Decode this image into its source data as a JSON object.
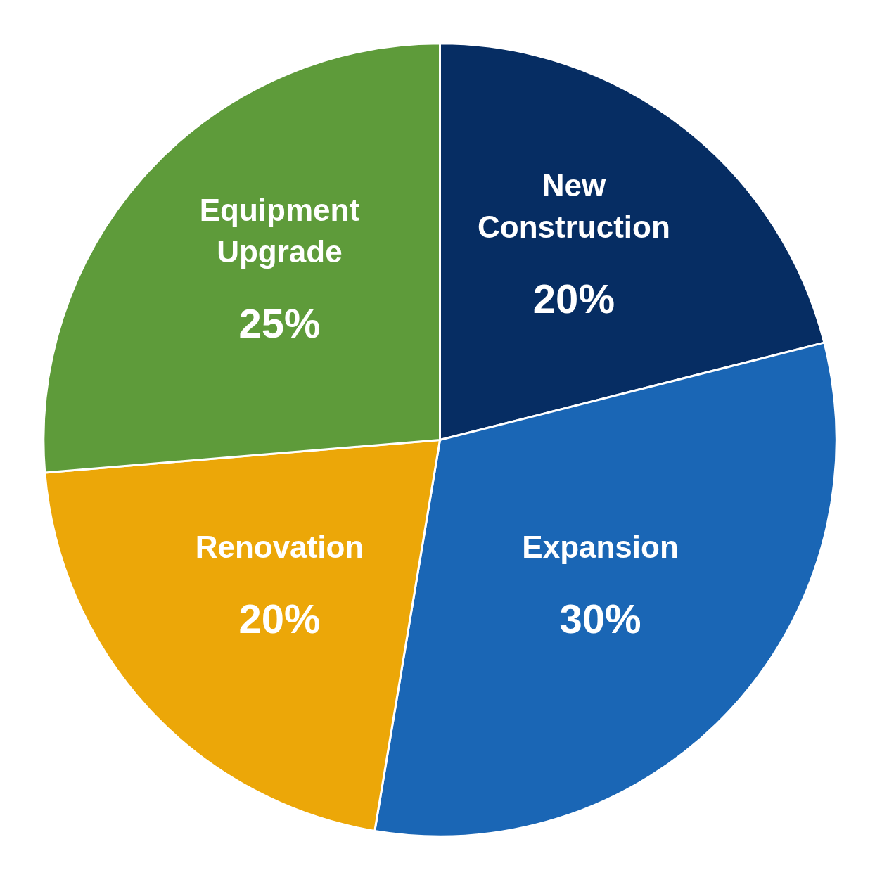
{
  "chart_data": {
    "type": "pie",
    "categories": [
      "New Construction",
      "Expansion",
      "Renovation",
      "Equipment Upgrade"
    ],
    "values": [
      20,
      30,
      20,
      25
    ],
    "colors": [
      "#062d63",
      "#1a66b5",
      "#eca708",
      "#5e9b3a"
    ],
    "value_labels": [
      "20%",
      "30%",
      "20%",
      "25%"
    ]
  }
}
